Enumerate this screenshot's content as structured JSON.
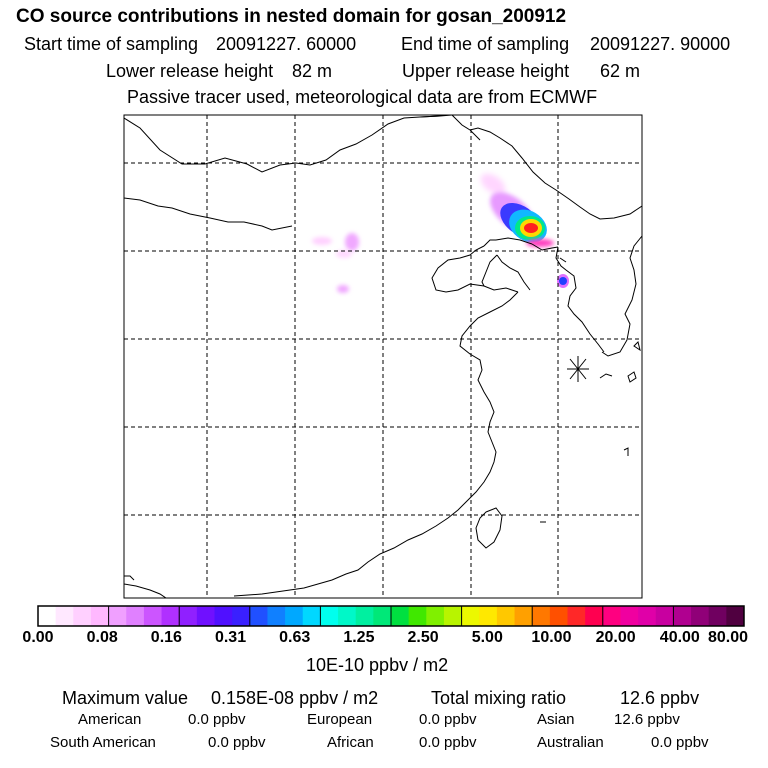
{
  "header": {
    "title": "CO  source contributions in nested domain for gosan_200912",
    "start_label": "Start time of sampling",
    "start_value": "20091227. 60000",
    "end_label": "End time of sampling",
    "end_value": "20091227. 90000",
    "lower_label": "Lower release height",
    "lower_value": "82 m",
    "upper_label": "Upper release height",
    "upper_value": "62 m",
    "note": "Passive tracer used, meteorological data are from ECMWF"
  },
  "colorbar": {
    "colors": [
      "#ffffff",
      "#ffe8ff",
      "#ffd0ff",
      "#ffb8ff",
      "#f0a0ff",
      "#e080ff",
      "#cc55ff",
      "#b030ff",
      "#9020ff",
      "#7010ff",
      "#5010ff",
      "#3a20ff",
      "#2050ff",
      "#1080ff",
      "#00a8ff",
      "#00d8ff",
      "#00ffee",
      "#00f8c8",
      "#00f0a0",
      "#00e878",
      "#00e040",
      "#40e800",
      "#80f000",
      "#b8f400",
      "#ecf800",
      "#ffe800",
      "#ffc800",
      "#ffa000",
      "#ff7800",
      "#ff5000",
      "#ff2828",
      "#ff0050",
      "#ff0080",
      "#f000a0",
      "#e000a8",
      "#c800a0",
      "#b00090",
      "#900078",
      "#700060",
      "#500040"
    ],
    "ticks": [
      "0.00",
      "0.08",
      "0.16",
      "0.31",
      "0.63",
      "1.25",
      "2.50",
      "5.00",
      "10.00",
      "20.00",
      "40.00",
      "80.00"
    ],
    "units": "10E-10 ppbv / m2"
  },
  "summary": {
    "max_label": "Maximum value",
    "max_value": "0.158E-08 ppbv / m2",
    "total_label": "Total mixing ratio",
    "total_value": "12.6 ppbv",
    "regions": [
      {
        "name": "American",
        "value": "0.0 ppbv"
      },
      {
        "name": "European",
        "value": "0.0 ppbv"
      },
      {
        "name": "Asian",
        "value": "12.6 ppbv"
      },
      {
        "name": "South American",
        "value": "0.0 ppbv"
      },
      {
        "name": "African",
        "value": "0.0 ppbv"
      },
      {
        "name": "Australian",
        "value": "0.0 ppbv"
      }
    ]
  }
}
